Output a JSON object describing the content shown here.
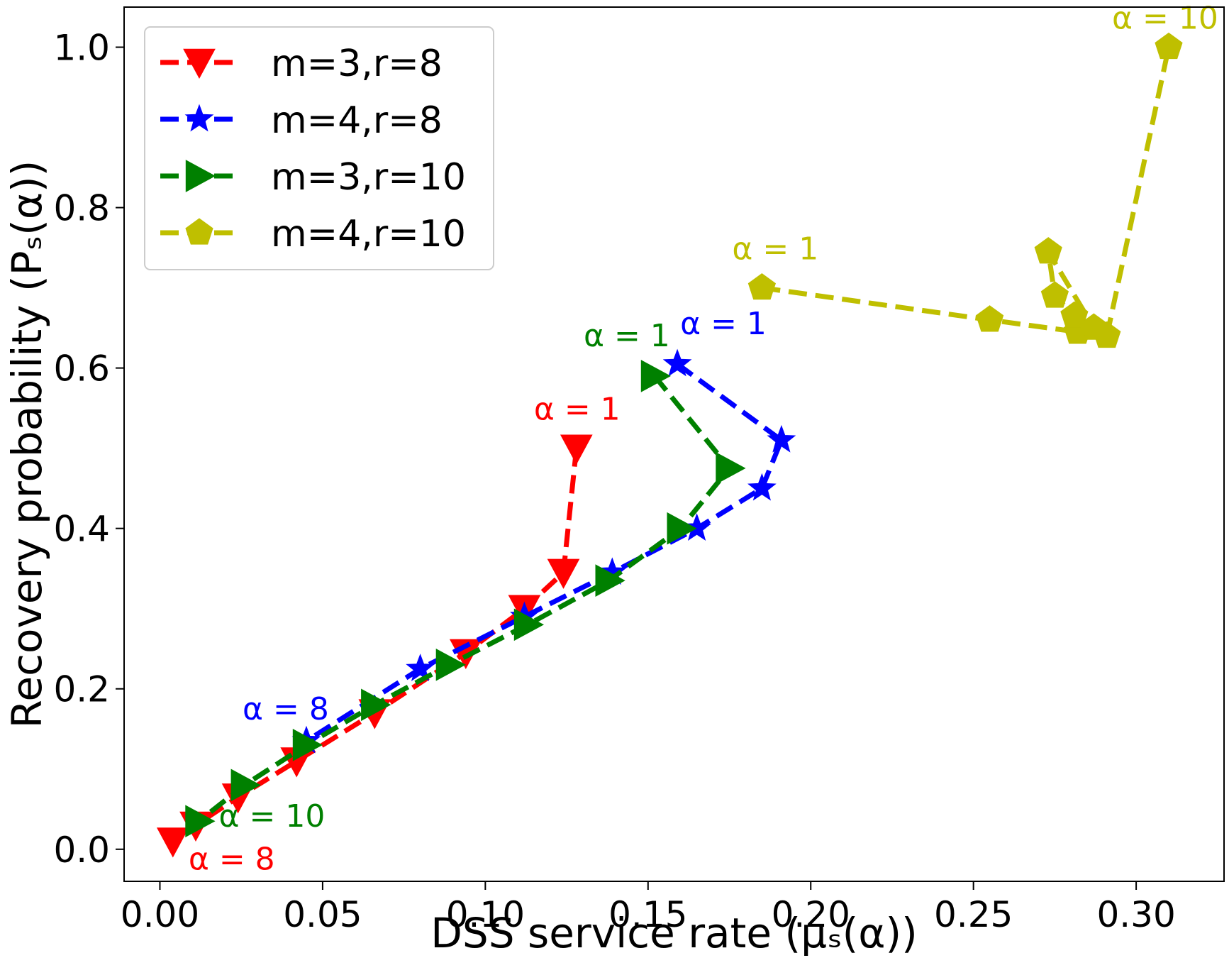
{
  "chart_data": {
    "type": "line",
    "title": "",
    "xlabel": "DSS service rate (μₛ(α))",
    "ylabel": "Recovery probability (Pₛ(α))",
    "xlim": [
      -0.011,
      0.327
    ],
    "ylim": [
      -0.04,
      1.05
    ],
    "xticks": [
      0.0,
      0.05,
      0.1,
      0.15,
      0.2,
      0.25,
      0.3
    ],
    "xtick_labels": [
      "0.00",
      "0.05",
      "0.10",
      "0.15",
      "0.20",
      "0.25",
      "0.30"
    ],
    "yticks": [
      0.0,
      0.2,
      0.4,
      0.6,
      0.8,
      1.0
    ],
    "ytick_labels": [
      "0.0",
      "0.2",
      "0.4",
      "0.6",
      "0.8",
      "1.0"
    ],
    "legend_position": "top-left",
    "series": [
      {
        "name": "m=3,r=8",
        "color": "#ff0000",
        "marker": "triangle-down",
        "x": [
          0.128,
          0.124,
          0.112,
          0.094,
          0.066,
          0.042,
          0.024,
          0.011,
          0.004
        ],
        "y": [
          0.5,
          0.345,
          0.3,
          0.245,
          0.17,
          0.11,
          0.065,
          0.03,
          0.01
        ]
      },
      {
        "name": "m=4,r=8",
        "color": "#0000ff",
        "marker": "star",
        "x": [
          0.159,
          0.191,
          0.185,
          0.165,
          0.139,
          0.112,
          0.08,
          0.045
        ],
        "y": [
          0.605,
          0.51,
          0.45,
          0.4,
          0.345,
          0.29,
          0.225,
          0.135
        ]
      },
      {
        "name": "m=3,r=10",
        "color": "#008000",
        "marker": "triangle-right",
        "x": [
          0.152,
          0.175,
          0.16,
          0.138,
          0.113,
          0.089,
          0.066,
          0.045,
          0.026,
          0.012
        ],
        "y": [
          0.59,
          0.475,
          0.4,
          0.335,
          0.28,
          0.23,
          0.18,
          0.13,
          0.08,
          0.035
        ]
      },
      {
        "name": "m=4,r=10",
        "color": "#bfbf00",
        "marker": "pentagon",
        "x": [
          0.185,
          0.255,
          0.282,
          0.281,
          0.275,
          0.273,
          0.287,
          0.291,
          0.31
        ],
        "y": [
          0.7,
          0.66,
          0.645,
          0.665,
          0.69,
          0.745,
          0.65,
          0.64,
          1.0
        ]
      }
    ],
    "annotations": [
      {
        "text": "α = 1",
        "series": 0,
        "x": 0.128,
        "y": 0.5,
        "dx": -60,
        "dy": -40
      },
      {
        "text": "α = 8",
        "series": 0,
        "x": 0.004,
        "y": 0.01,
        "dx": 22,
        "dy": 40
      },
      {
        "text": "α = 1",
        "series": 1,
        "x": 0.159,
        "y": 0.605,
        "dx": 4,
        "dy": -42
      },
      {
        "text": "α = 8",
        "series": 1,
        "x": 0.045,
        "y": 0.135,
        "dx": -90,
        "dy": -30
      },
      {
        "text": "α = 1",
        "series": 2,
        "x": 0.152,
        "y": 0.59,
        "dx": -100,
        "dy": -42
      },
      {
        "text": "α = 10",
        "series": 2,
        "x": 0.012,
        "y": 0.035,
        "dx": 28,
        "dy": 8
      },
      {
        "text": "α = 1",
        "series": 3,
        "x": 0.185,
        "y": 0.7,
        "dx": -42,
        "dy": -40
      },
      {
        "text": "α = 10",
        "series": 3,
        "x": 0.31,
        "y": 1.0,
        "dx": -80,
        "dy": -26
      }
    ]
  }
}
